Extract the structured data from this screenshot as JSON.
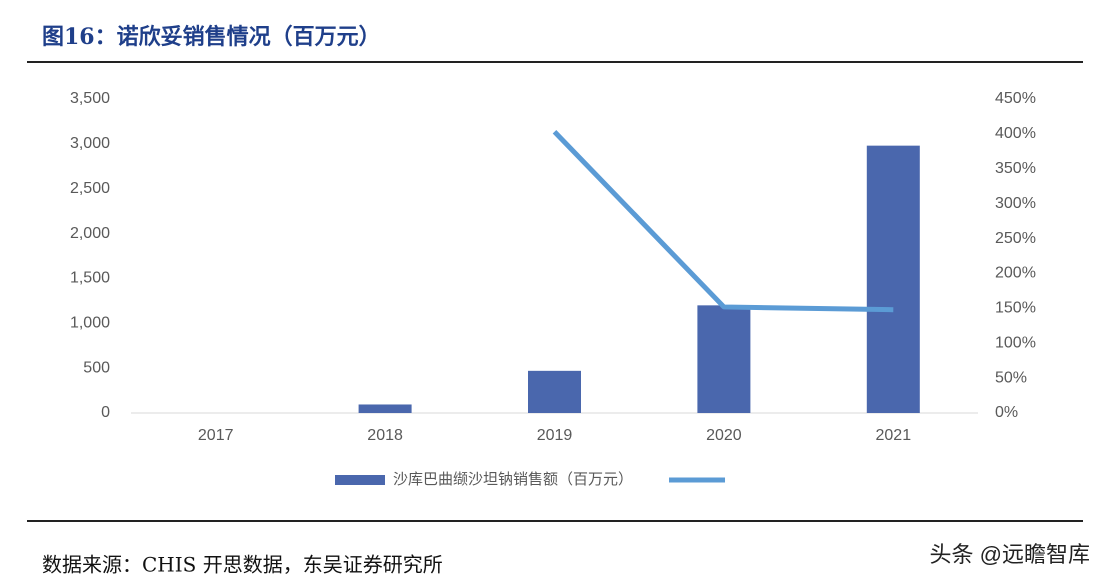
{
  "header": {
    "title": "图16：诺欣妥销售情况（百万元）"
  },
  "chart_data": {
    "type": "bar",
    "categories": [
      "2017",
      "2018",
      "2019",
      "2020",
      "2021"
    ],
    "series": [
      {
        "name": "沙库巴曲缬沙坦钠销售额（百万元）",
        "type": "bar",
        "color": "#4a67ad",
        "values": [
          0,
          95,
          470,
          1200,
          2980
        ]
      },
      {
        "type": "line",
        "axis": "y2",
        "color": "#5b9bd5",
        "values": [
          null,
          null,
          403,
          152,
          148
        ]
      }
    ],
    "ylim": [
      0,
      3500
    ],
    "yticks": [
      0,
      500,
      {
        "value": 1000,
        "label": "1,000"
      },
      {
        "value": 1500,
        "label": "1,500"
      },
      {
        "value": 2000,
        "label": "2,000"
      },
      {
        "value": 2500,
        "label": "2,500"
      },
      {
        "value": 3000,
        "label": "3,000"
      },
      {
        "value": 3500,
        "label": "3,500"
      }
    ],
    "y2lim": [
      0,
      450
    ],
    "y2ticks": [
      {
        "value": 0,
        "label": "0%"
      },
      {
        "value": 50,
        "label": "50%"
      },
      {
        "value": 100,
        "label": "100%"
      },
      {
        "value": 150,
        "label": "150%"
      },
      {
        "value": 200,
        "label": "200%"
      },
      {
        "value": 250,
        "label": "250%"
      },
      {
        "value": 300,
        "label": "300%"
      },
      {
        "value": 350,
        "label": "350%"
      },
      {
        "value": 400,
        "label": "400%"
      },
      {
        "value": 450,
        "label": "450%"
      }
    ],
    "grid": false,
    "legend": "bottom"
  },
  "footer": {
    "source": "数据来源：CHIS 开思数据，东吴证券研究所",
    "watermark": "头条 @远瞻智库"
  }
}
